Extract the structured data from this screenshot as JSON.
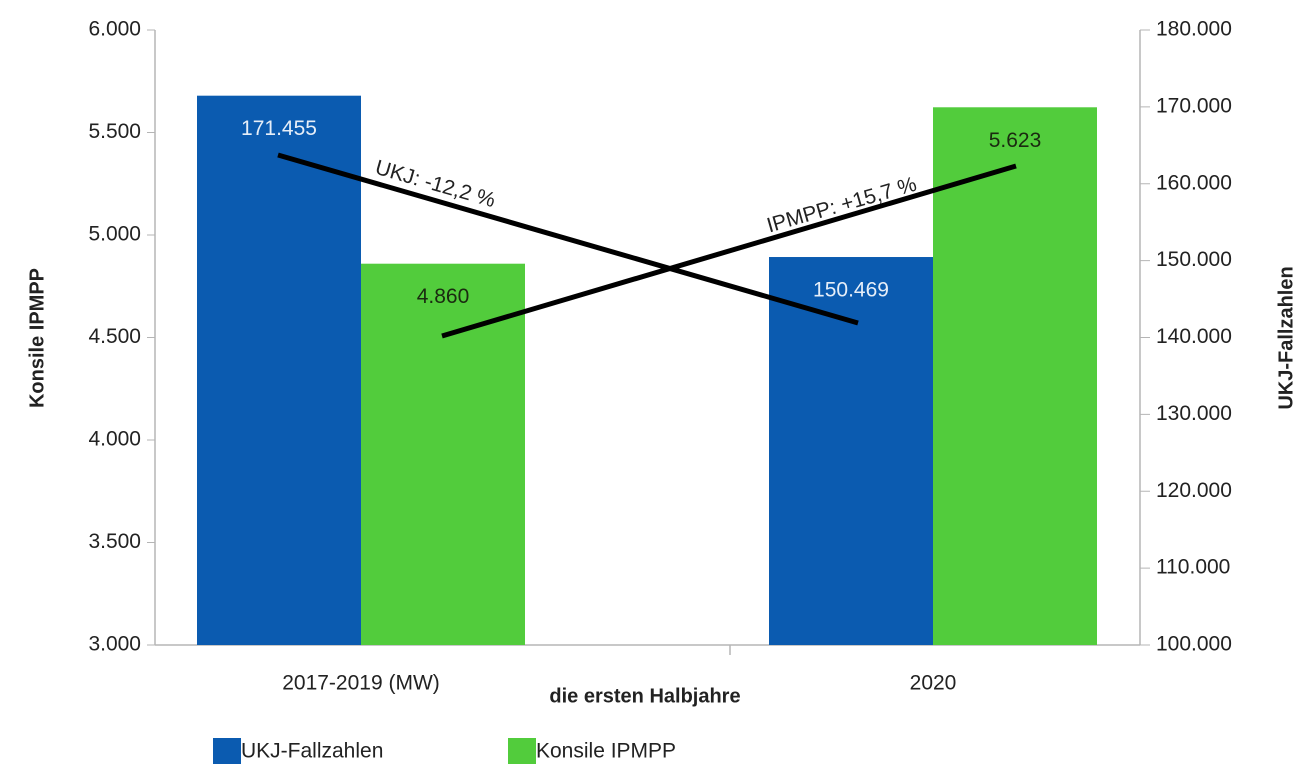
{
  "chart_data": {
    "type": "bar",
    "xlabel": "die ersten Halbjahre",
    "ylabel": "Konsile IPMPP",
    "y2label": "UKJ-Fallzahlen",
    "categories": [
      "2017-2019 (MW)",
      "2020"
    ],
    "series": [
      {
        "name": "UKJ-Fallzahlen",
        "color": "#0b5bb0",
        "axis": "y2",
        "values": [
          171455,
          150469
        ],
        "value_labels": [
          "171.455",
          "150.469"
        ]
      },
      {
        "name": "Konsile IPMPP",
        "color": "#52cc3c",
        "values": [
          4860,
          5623
        ],
        "value_labels": [
          "4.860",
          "5.623"
        ]
      }
    ],
    "ylim": [
      3000,
      6000
    ],
    "yticks": [
      {
        "value": 3000,
        "label": "3.000"
      },
      {
        "value": 3500,
        "label": "3.500"
      },
      {
        "value": 4000,
        "label": "4.000"
      },
      {
        "value": 4500,
        "label": "4.500"
      },
      {
        "value": 5000,
        "label": "5.000"
      },
      {
        "value": 5500,
        "label": "5.500"
      },
      {
        "value": 6000,
        "label": "6.000"
      }
    ],
    "y2lim": [
      100000,
      180000
    ],
    "y2ticks": [
      {
        "value": 100000,
        "label": "100.000"
      },
      {
        "value": 110000,
        "label": "110.000"
      },
      {
        "value": 120000,
        "label": "120.000"
      },
      {
        "value": 130000,
        "label": "130.000"
      },
      {
        "value": 140000,
        "label": "140.000"
      },
      {
        "value": 150000,
        "label": "150.000"
      },
      {
        "value": 160000,
        "label": "160.000"
      },
      {
        "value": 170000,
        "label": "170.000"
      },
      {
        "value": 180000,
        "label": "180.000"
      }
    ],
    "annotations": [
      "UKJ: -12,2 %",
      "IPMPP: +15,7 %"
    ],
    "legend": "bottom-left"
  }
}
